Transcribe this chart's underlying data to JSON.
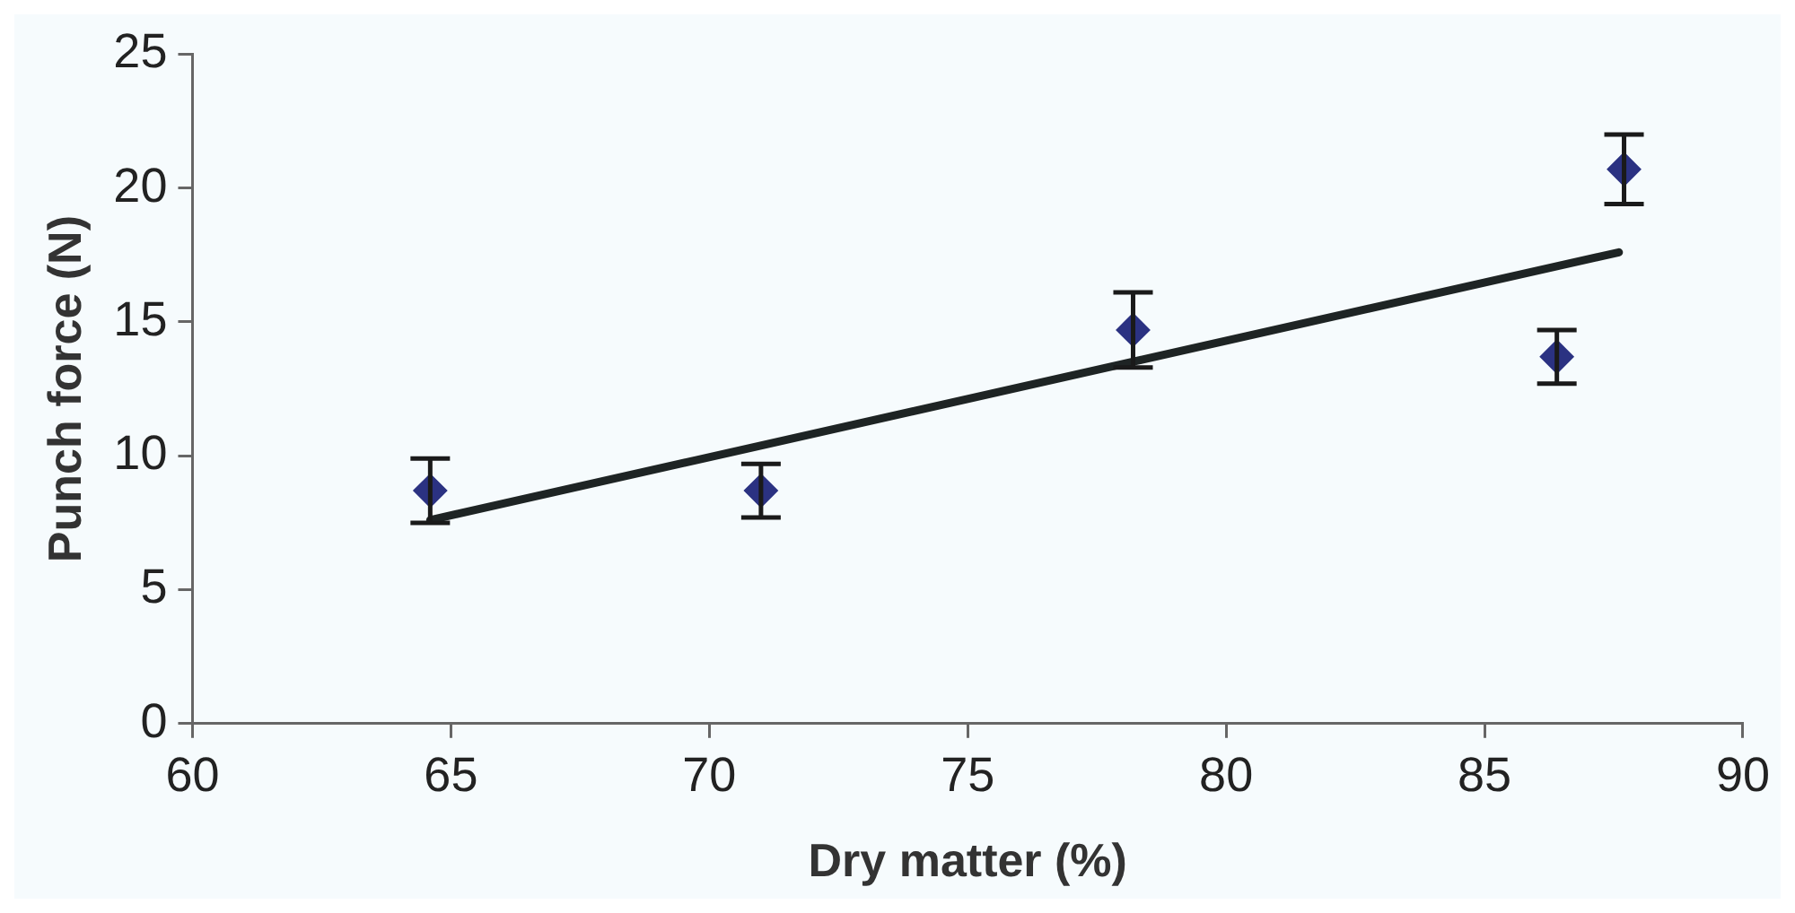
{
  "chart_data": {
    "type": "scatter",
    "xlabel": "Dry matter (%)",
    "ylabel": "Punch force (N)",
    "xlim": [
      60,
      90
    ],
    "xticks": [
      60,
      65,
      70,
      75,
      80,
      85,
      90
    ],
    "ylim": [
      0,
      25
    ],
    "yticks": [
      0,
      5,
      10,
      15,
      20,
      25
    ],
    "grid": false,
    "legend": false,
    "marker": "diamond",
    "series": [
      {
        "color": "#2b3282",
        "x": [
          64.6,
          71.0,
          78.2,
          86.4,
          87.7
        ],
        "values": [
          8.7,
          8.7,
          14.7,
          13.7,
          20.7
        ],
        "errors": [
          1.2,
          1.0,
          1.4,
          1.0,
          1.3
        ]
      },
      {
        "type": "line",
        "color": "#1e2424",
        "x": [
          64.6,
          87.6
        ],
        "values": [
          7.6,
          17.6
        ],
        "marker": "none",
        "line_style": "solid"
      }
    ]
  }
}
